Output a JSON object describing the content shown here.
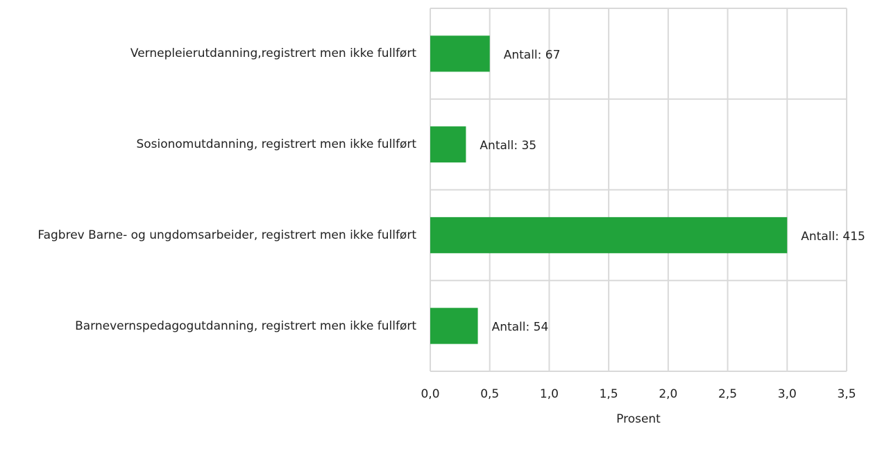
{
  "chart_data": {
    "type": "barh",
    "categories": [
      "Vernepleierutdanning,registrert men ikke fullført",
      "Sosionomutdanning, registrert men ikke fullført",
      "Fagbrev Barne- og ungdomsarbeider, registrert men ikke fullført",
      "Barnevernspedagogutdanning, registrert men ikke fullført"
    ],
    "values": [
      0.5,
      0.3,
      3.0,
      0.4
    ],
    "bar_labels": [
      "Antall: 67",
      "Antall: 35",
      "Antall: 415",
      "Antall: 54"
    ],
    "color": "#21a33b",
    "xlabel": "Prosent",
    "xlim": [
      0,
      3.5
    ],
    "xticks": [
      {
        "value": 0,
        "label": "0,0"
      },
      {
        "value": 0.5,
        "label": "0,5"
      },
      {
        "value": 1,
        "label": "1,0"
      },
      {
        "value": 1.5,
        "label": "1,5"
      },
      {
        "value": 2,
        "label": "2,0"
      },
      {
        "value": 2.5,
        "label": "2,5"
      },
      {
        "value": 3,
        "label": "3,0"
      },
      {
        "value": 3.5,
        "label": "3,5"
      }
    ],
    "grid": true
  }
}
